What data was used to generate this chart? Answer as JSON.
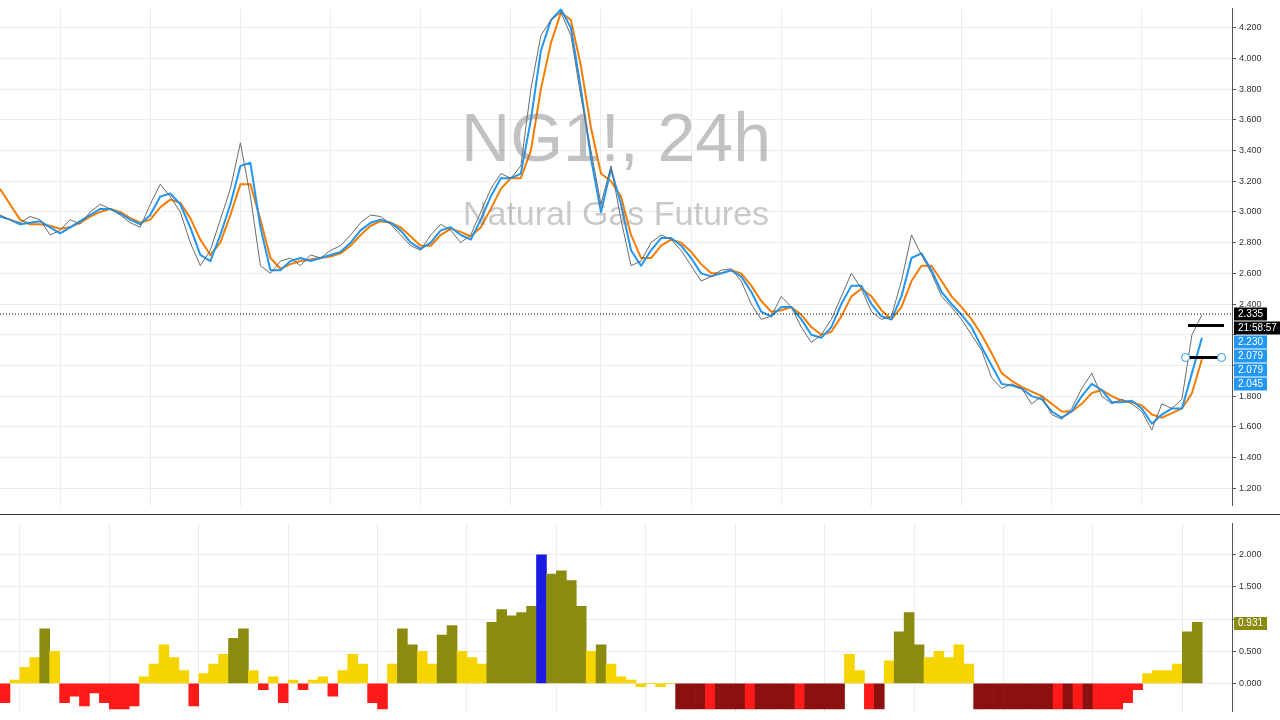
{
  "chart_data": [
    {
      "type": "line",
      "title": "NG1!, 24h",
      "subtitle": "Natural Gas Futures",
      "categories": [
        null,
        null,
        null,
        null,
        null,
        null,
        null,
        null,
        null,
        null,
        null,
        null,
        null,
        null,
        null,
        null,
        null,
        null,
        null,
        null,
        null,
        null,
        null,
        null,
        null,
        null,
        null,
        null,
        null,
        null,
        null,
        null,
        null,
        null,
        null,
        null,
        null,
        null,
        null,
        null,
        null,
        null,
        null,
        null,
        null,
        null,
        null,
        null,
        null,
        null,
        null,
        null,
        null,
        null,
        null,
        null,
        null,
        null,
        null,
        null,
        null,
        null,
        null,
        null,
        null,
        null,
        null,
        null,
        null,
        null,
        null,
        null,
        null,
        null,
        null,
        null,
        null,
        null,
        null,
        null,
        null,
        null,
        null,
        null,
        null,
        null,
        null,
        null,
        null,
        null,
        null,
        null,
        null,
        null,
        null,
        null,
        null,
        null,
        null,
        null,
        null,
        null,
        null,
        null,
        null,
        null,
        null,
        null,
        null,
        null,
        null,
        null,
        null,
        null,
        null,
        null,
        null,
        null,
        null,
        null,
        null,
        null,
        null,
        null
      ],
      "series": [
        {
          "color": "#6b6b6b",
          "values": [
            2.98,
            2.95,
            2.93,
            2.97,
            2.95,
            2.85,
            2.88,
            2.95,
            2.92,
            3.0,
            3.05,
            3.02,
            2.98,
            2.93,
            2.9,
            3.05,
            3.18,
            3.1,
            3.0,
            2.8,
            2.65,
            2.75,
            2.95,
            3.15,
            3.45,
            3.1,
            2.65,
            2.6,
            2.68,
            2.7,
            2.65,
            2.72,
            2.7,
            2.75,
            2.78,
            2.85,
            2.93,
            2.98,
            2.97,
            2.92,
            2.85,
            2.78,
            2.75,
            2.85,
            2.92,
            2.88,
            2.8,
            2.85,
            3.0,
            3.15,
            3.25,
            3.22,
            3.3,
            3.8,
            4.15,
            4.25,
            4.3,
            4.15,
            3.75,
            3.4,
            3.05,
            3.3,
            2.95,
            2.65,
            2.68,
            2.8,
            2.85,
            2.82,
            2.75,
            2.65,
            2.55,
            2.58,
            2.62,
            2.63,
            2.55,
            2.4,
            2.3,
            2.32,
            2.45,
            2.38,
            2.25,
            2.15,
            2.2,
            2.3,
            2.45,
            2.6,
            2.5,
            2.35,
            2.3,
            2.32,
            2.55,
            2.85,
            2.72,
            2.6,
            2.45,
            2.38,
            2.3,
            2.2,
            2.1,
            1.92,
            1.85,
            1.88,
            1.85,
            1.75,
            1.8,
            1.68,
            1.65,
            1.72,
            1.85,
            1.95,
            1.8,
            1.75,
            1.78,
            1.75,
            1.7,
            1.58,
            1.75,
            1.72,
            1.78,
            2.2,
            2.33,
            null,
            null,
            null
          ]
        },
        {
          "color": "#2196f3",
          "values": [
            2.97,
            2.95,
            2.92,
            2.93,
            2.94,
            2.9,
            2.86,
            2.9,
            2.94,
            2.98,
            3.02,
            3.02,
            2.99,
            2.95,
            2.92,
            2.98,
            3.1,
            3.12,
            3.05,
            2.9,
            2.72,
            2.68,
            2.85,
            3.05,
            3.3,
            3.32,
            2.9,
            2.62,
            2.62,
            2.68,
            2.7,
            2.68,
            2.7,
            2.72,
            2.74,
            2.8,
            2.88,
            2.93,
            2.95,
            2.93,
            2.88,
            2.8,
            2.76,
            2.8,
            2.88,
            2.9,
            2.85,
            2.82,
            2.95,
            3.1,
            3.22,
            3.22,
            3.25,
            3.6,
            4.05,
            4.25,
            4.32,
            4.2,
            3.8,
            3.35,
            3.0,
            3.28,
            3.05,
            2.75,
            2.65,
            2.75,
            2.83,
            2.83,
            2.78,
            2.7,
            2.6,
            2.58,
            2.6,
            2.62,
            2.58,
            2.48,
            2.35,
            2.32,
            2.38,
            2.38,
            2.3,
            2.2,
            2.18,
            2.25,
            2.4,
            2.52,
            2.52,
            2.4,
            2.32,
            2.3,
            2.45,
            2.7,
            2.73,
            2.62,
            2.48,
            2.4,
            2.33,
            2.25,
            2.12,
            2.0,
            1.88,
            1.87,
            1.85,
            1.8,
            1.78,
            1.7,
            1.66,
            1.7,
            1.8,
            1.88,
            1.84,
            1.76,
            1.76,
            1.77,
            1.72,
            1.62,
            1.68,
            1.72,
            1.72,
            1.95,
            2.18,
            null,
            null,
            null
          ]
        },
        {
          "color": "#f57c00",
          "values": [
            3.15,
            3.05,
            2.95,
            2.92,
            2.92,
            2.91,
            2.89,
            2.9,
            2.93,
            2.97,
            3.0,
            3.02,
            3.0,
            2.96,
            2.93,
            2.95,
            3.03,
            3.08,
            3.06,
            2.96,
            2.82,
            2.72,
            2.8,
            2.98,
            3.18,
            3.18,
            2.95,
            2.7,
            2.63,
            2.66,
            2.68,
            2.69,
            2.7,
            2.71,
            2.73,
            2.78,
            2.85,
            2.91,
            2.94,
            2.93,
            2.9,
            2.84,
            2.78,
            2.78,
            2.85,
            2.89,
            2.87,
            2.84,
            2.9,
            3.02,
            3.15,
            3.22,
            3.22,
            3.4,
            3.8,
            4.1,
            4.3,
            4.25,
            3.95,
            3.55,
            3.25,
            3.2,
            3.1,
            2.85,
            2.7,
            2.7,
            2.78,
            2.82,
            2.8,
            2.74,
            2.66,
            2.6,
            2.6,
            2.62,
            2.6,
            2.52,
            2.42,
            2.35,
            2.36,
            2.38,
            2.33,
            2.25,
            2.2,
            2.22,
            2.32,
            2.45,
            2.5,
            2.45,
            2.36,
            2.3,
            2.38,
            2.55,
            2.65,
            2.65,
            2.55,
            2.45,
            2.38,
            2.3,
            2.2,
            2.08,
            1.95,
            1.9,
            1.86,
            1.83,
            1.8,
            1.75,
            1.7,
            1.7,
            1.75,
            1.82,
            1.84,
            1.8,
            1.77,
            1.76,
            1.74,
            1.68,
            1.66,
            1.69,
            1.72,
            1.82,
            2.04,
            null,
            null,
            null
          ]
        }
      ],
      "ylim": [
        1.087,
        4.326
      ],
      "yticks": [
        {
          "value": 1.2,
          "label": "1.200"
        },
        {
          "value": 1.4,
          "label": "1.400"
        },
        {
          "value": 1.6,
          "label": "1.600"
        },
        {
          "value": 1.8,
          "label": "1.800"
        },
        {
          "value": 2.0,
          "label": null
        },
        {
          "value": 2.2,
          "label": null
        },
        {
          "value": 2.4,
          "label": "2.400"
        },
        {
          "value": 2.6,
          "label": "2.600"
        },
        {
          "value": 2.8,
          "label": "2.800"
        },
        {
          "value": 3.0,
          "label": "3.000"
        },
        {
          "value": 3.2,
          "label": "3.200"
        },
        {
          "value": 3.4,
          "label": "3.400"
        },
        {
          "value": 3.6,
          "label": "3.600"
        },
        {
          "value": 3.8,
          "label": "3.800"
        },
        {
          "value": 4.0,
          "label": "4.000"
        },
        {
          "value": 4.2,
          "label": "4.200"
        }
      ],
      "ref_lines": [
        {
          "axis": "y",
          "value": 2.335,
          "label": "2.335",
          "color": "#000000",
          "line_style": "dotted"
        }
      ],
      "annotations": [
        "21:58:57",
        "2.230",
        "2.079",
        "2.079",
        "2.045"
      ],
      "grid": true,
      "legend": false,
      "tick_labels": "y",
      "marker": "none",
      "line_style": "solid"
    },
    {
      "type": "bar",
      "categories": [
        null,
        null,
        null,
        null,
        null,
        null,
        null,
        null,
        null,
        null,
        null,
        null,
        null,
        null,
        null,
        null,
        null,
        null,
        null,
        null,
        null,
        null,
        null,
        null,
        null,
        null,
        null,
        null,
        null,
        null,
        null,
        null,
        null,
        null,
        null,
        null,
        null,
        null,
        null,
        null,
        null,
        null,
        null,
        null,
        null,
        null,
        null,
        null,
        null,
        null,
        null,
        null,
        null,
        null,
        null,
        null,
        null,
        null,
        null,
        null,
        null,
        null,
        null,
        null,
        null,
        null,
        null,
        null,
        null,
        null,
        null,
        null,
        null,
        null,
        null,
        null,
        null,
        null,
        null,
        null,
        null,
        null,
        null,
        null,
        null,
        null,
        null,
        null,
        null,
        null,
        null,
        null,
        null,
        null,
        null,
        null,
        null,
        null,
        null,
        null,
        null,
        null,
        null,
        null,
        null,
        null,
        null,
        null,
        null,
        null,
        null,
        null,
        null,
        null,
        null,
        null,
        null,
        null,
        null,
        null,
        null,
        null,
        null,
        null
      ],
      "values": [
        -0.3,
        0.05,
        0.25,
        0.4,
        0.85,
        0.5,
        -0.3,
        -0.2,
        -0.35,
        -0.15,
        -0.3,
        -0.4,
        -0.4,
        -0.35,
        0.1,
        0.3,
        0.6,
        0.4,
        0.2,
        -0.35,
        0.15,
        0.3,
        0.45,
        0.7,
        0.85,
        0.2,
        -0.1,
        0.1,
        -0.3,
        0.05,
        -0.1,
        0.05,
        0.1,
        -0.2,
        0.2,
        0.45,
        0.3,
        -0.3,
        -0.4,
        0.3,
        0.85,
        0.6,
        0.5,
        0.3,
        0.75,
        0.9,
        0.5,
        0.4,
        0.3,
        0.95,
        1.15,
        1.05,
        1.1,
        1.2,
        2.0,
        1.7,
        1.75,
        1.6,
        1.2,
        0.5,
        0.6,
        0.3,
        0.1,
        0.05,
        -0.05,
        0.0,
        -0.05,
        0.0,
        -0.4,
        -0.4,
        -0.4,
        -0.4,
        -0.4,
        -0.4,
        -0.4,
        -0.4,
        -0.4,
        -0.4,
        -0.4,
        -0.4,
        -0.4,
        -0.4,
        -0.4,
        -0.4,
        -0.4,
        0.45,
        0.2,
        -0.4,
        -0.4,
        0.35,
        0.8,
        1.1,
        0.6,
        0.4,
        0.5,
        0.4,
        0.6,
        0.3,
        -0.4,
        -0.4,
        -0.4,
        -0.4,
        -0.4,
        -0.4,
        -0.4,
        -0.4,
        -0.4,
        -0.4,
        -0.4,
        -0.4,
        -0.4,
        -0.4,
        -0.4,
        -0.3,
        -0.1,
        0.15,
        0.2,
        0.2,
        0.3,
        0.8,
        0.95,
        null,
        null,
        null
      ],
      "colors": [
        "#ff1a1a",
        "#f5d400",
        "#f5d400",
        "#f5d400",
        "#8b8b10",
        "#f5d400",
        "#ff1a1a",
        "#ff1a1a",
        "#ff1a1a",
        "#ff1a1a",
        "#ff1a1a",
        "#ff1a1a",
        "#ff1a1a",
        "#ff1a1a",
        "#f5d400",
        "#f5d400",
        "#f5d400",
        "#f5d400",
        "#f5d400",
        "#ff1a1a",
        "#f5d400",
        "#f5d400",
        "#f5d400",
        "#8b8b10",
        "#8b8b10",
        "#f5d400",
        "#ff1a1a",
        "#f5d400",
        "#ff1a1a",
        "#f5d400",
        "#ff1a1a",
        "#f5d400",
        "#f5d400",
        "#ff1a1a",
        "#f5d400",
        "#f5d400",
        "#f5d400",
        "#ff1a1a",
        "#ff1a1a",
        "#f5d400",
        "#8b8b10",
        "#8b8b10",
        "#f5d400",
        "#f5d400",
        "#8b8b10",
        "#8b8b10",
        "#f5d400",
        "#f5d400",
        "#f5d400",
        "#8b8b10",
        "#8b8b10",
        "#8b8b10",
        "#8b8b10",
        "#8b8b10",
        "#1a1ae0",
        "#8b8b10",
        "#8b8b10",
        "#8b8b10",
        "#8b8b10",
        "#f5d400",
        "#8b8b10",
        "#f5d400",
        "#f5d400",
        "#f5d400",
        "#f5d400",
        "#f5d400",
        "#f5d400",
        "#f5d400",
        "#8b1010",
        "#8b1010",
        "#8b1010",
        "#ff1a1a",
        "#8b1010",
        "#8b1010",
        "#8b1010",
        "#ff1a1a",
        "#8b1010",
        "#8b1010",
        "#8b1010",
        "#8b1010",
        "#ff1a1a",
        "#8b1010",
        "#8b1010",
        "#8b1010",
        "#8b1010",
        "#f5d400",
        "#f5d400",
        "#ff1a1a",
        "#8b1010",
        "#f5d400",
        "#8b8b10",
        "#8b8b10",
        "#8b8b10",
        "#f5d400",
        "#f5d400",
        "#f5d400",
        "#f5d400",
        "#f5d400",
        "#8b1010",
        "#8b1010",
        "#8b1010",
        "#8b1010",
        "#8b1010",
        "#8b1010",
        "#8b1010",
        "#8b1010",
        "#ff1a1a",
        "#8b1010",
        "#ff1a1a",
        "#8b1010",
        "#ff1a1a",
        "#ff1a1a",
        "#ff1a1a",
        "#ff1a1a",
        "#ff1a1a",
        "#f5d400",
        "#f5d400",
        "#f5d400",
        "#f5d400",
        "#8b8b10",
        "#8b8b10",
        "#8b8b10",
        "#8b8b10",
        "#8b8b10"
      ],
      "ylim": [
        -0.44,
        2.49
      ],
      "yticks": [
        {
          "value": 0,
          "label": "0.000"
        },
        {
          "value": 0.5,
          "label": "0.500"
        },
        {
          "value": 1,
          "label": null
        },
        {
          "value": 1.5,
          "label": "1.500"
        },
        {
          "value": 2,
          "label": "2.000"
        }
      ],
      "annotations": [
        {
          "text": "0.931",
          "y": 0.931
        }
      ],
      "grid": true,
      "legend": false,
      "tick_labels": "y"
    }
  ]
}
